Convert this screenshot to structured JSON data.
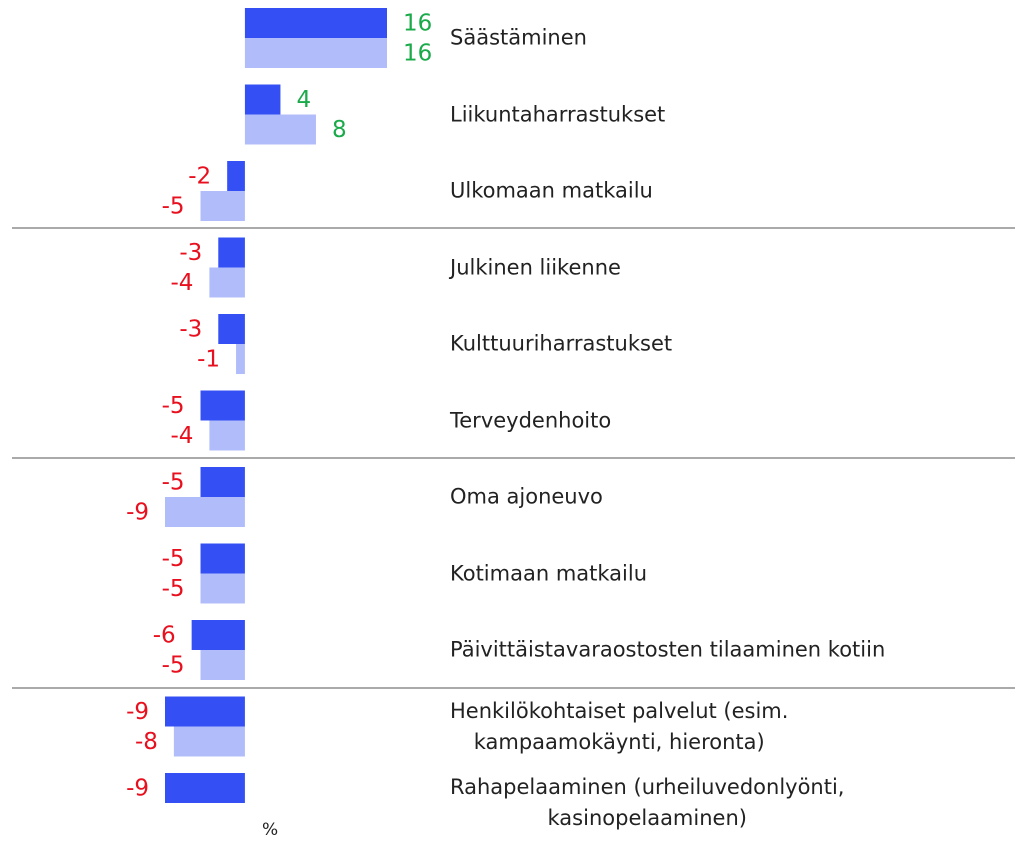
{
  "chart_data": {
    "type": "hbar",
    "categories": [
      "Säästäminen",
      "Liikuntaharrastukset",
      "Ulkomaan matkailu",
      "Julkinen liikenne",
      "Kulttuuriharrastukset",
      "Terveydenhoito",
      "Oma ajoneuvo",
      "Kotimaan matkailu",
      "Päivittäistavaraostosten tilaaminen kotiin",
      "Henkilökohtaiset palvelut (esim.\nkampaamokäynti, hieronta)",
      "Rahapelaaminen (urheiluvedonlyönti,\nkasinopelaaminen)"
    ],
    "series": [
      {
        "color": "#3450f5",
        "values": [
          16,
          4,
          -2,
          -3,
          -3,
          -5,
          -5,
          -5,
          -6,
          -9,
          -9
        ]
      },
      {
        "color": "#b1bcfa",
        "values": [
          16,
          8,
          -5,
          -4,
          -1,
          -4,
          -9,
          -5,
          -5,
          -8,
          null
        ]
      }
    ],
    "xlim": [
      -9,
      16
    ],
    "unit": "%"
  }
}
